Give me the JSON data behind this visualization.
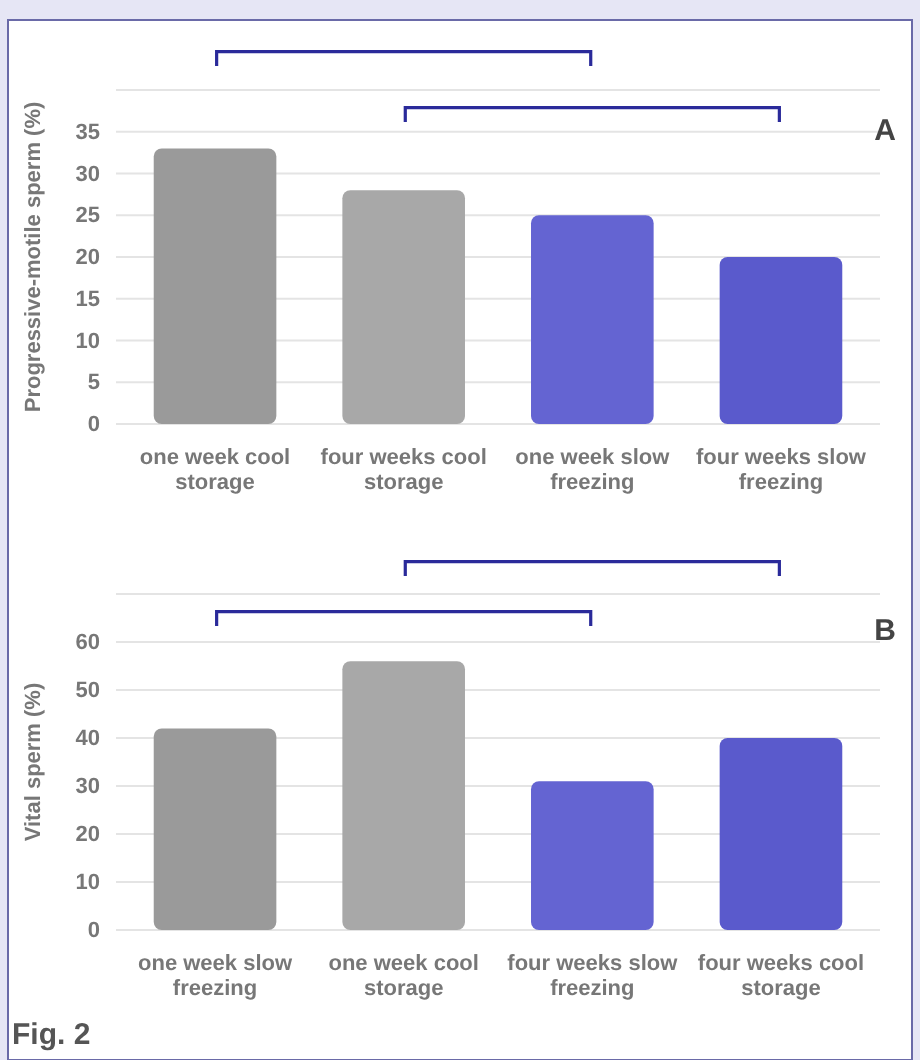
{
  "chart_data": [
    {
      "type": "bar",
      "ylabel": "Progressive-motile sperm (%)",
      "categories": [
        "one week cool storage",
        "four weeks cool storage",
        "one week slow freezing",
        "four weeks slow freezing"
      ],
      "values": [
        33,
        28,
        25,
        20
      ],
      "colors": [
        "#9a9a9a",
        "#a8a8a8",
        "#6464d2",
        "#5a5acc"
      ],
      "ylim": [
        0,
        40
      ],
      "yticks": [
        0,
        5,
        10,
        15,
        20,
        25,
        30,
        35,
        {
          "value": 40,
          "label": null
        }
      ],
      "grid": "y",
      "annotations": [
        "A"
      ]
    },
    {
      "type": "bar",
      "ylabel": "Vital sperm (%)",
      "categories": [
        "one week slow freezing",
        "one week cool storage",
        "four weeks slow freezing",
        "four weeks cool storage"
      ],
      "values": [
        42,
        56,
        31,
        40
      ],
      "colors": [
        "#9a9a9a",
        "#a8a8a8",
        "#6464d2",
        "#5a5acc"
      ],
      "ylim": [
        0,
        70
      ],
      "yticks": [
        0,
        10,
        20,
        30,
        40,
        50,
        60,
        {
          "value": 70,
          "label": null
        }
      ],
      "grid": "y",
      "annotations": [
        "B",
        "Fig. 2"
      ]
    }
  ]
}
